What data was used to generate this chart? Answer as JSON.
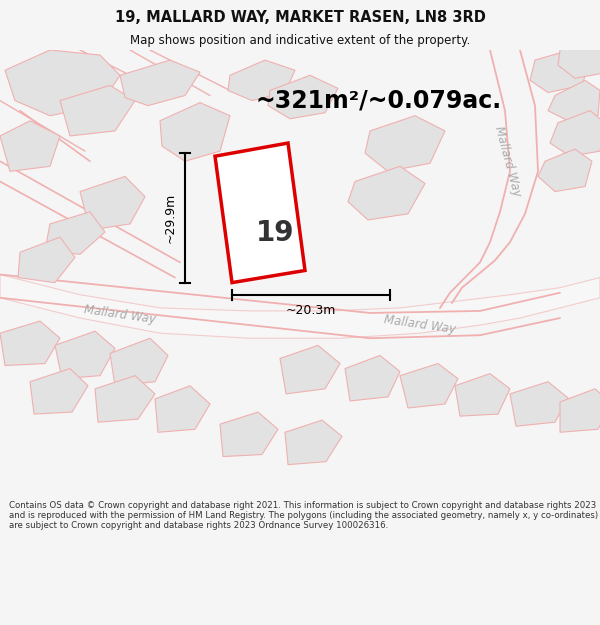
{
  "title": "19, MALLARD WAY, MARKET RASEN, LN8 3RD",
  "subtitle": "Map shows position and indicative extent of the property.",
  "area_text": "~321m²/~0.079ac.",
  "label_19": "19",
  "dim_height": "~29.9m",
  "dim_width": "~20.3m",
  "road_label_diag": "Mallard Way",
  "road_label_right": "Mallard Way",
  "road_label_lower": "Mallard Way",
  "footer": "Contains OS data © Crown copyright and database right 2021. This information is subject to Crown copyright and database rights 2023 and is reproduced with the permission of HM Land Registry. The polygons (including the associated geometry, namely x, y co-ordinates) are subject to Crown copyright and database rights 2023 Ordnance Survey 100026316.",
  "bg_color": "#f5f5f5",
  "map_bg": "#ffffff",
  "building_fill": "#e2e2e2",
  "building_stroke": "#f0b0b0",
  "highlight_fill": "#ffffff",
  "highlight_stroke": "#dd0000",
  "road_line_color": "#f0b0b0",
  "dim_color": "#000000",
  "text_color": "#111111",
  "road_text_color": "#aaaaaa",
  "footer_color": "#333333"
}
